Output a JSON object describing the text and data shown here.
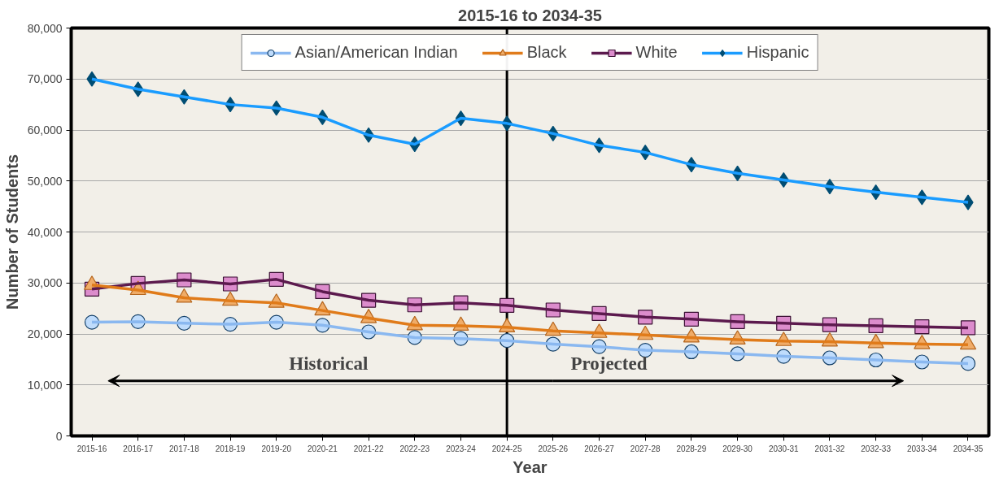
{
  "chart_data": {
    "type": "line",
    "title": "2015-16 to 2034-35",
    "xlabel": "Year",
    "ylabel": "Number of Students",
    "categories": [
      "2015-16",
      "2016-17",
      "2017-18",
      "2018-19",
      "2019-20",
      "2020-21",
      "2021-22",
      "2022-23",
      "2023-24",
      "2024-25",
      "2025-26",
      "2026-27",
      "2027-28",
      "2028-29",
      "2029-30",
      "2030-31",
      "2031-32",
      "2032-33",
      "2033-34",
      "2034-35"
    ],
    "series": [
      {
        "name": "Asian/American Indian",
        "color": "#8ab8f0",
        "marker": "circle",
        "values": [
          22300,
          22400,
          22100,
          21900,
          22300,
          21700,
          20400,
          19300,
          19100,
          18700,
          18000,
          17500,
          16800,
          16500,
          16100,
          15600,
          15300,
          14900,
          14500,
          14200
        ]
      },
      {
        "name": "Black",
        "color": "#e07b1a",
        "marker": "triangle",
        "values": [
          29600,
          28600,
          27100,
          26500,
          26100,
          24600,
          23100,
          21700,
          21600,
          21300,
          20600,
          20200,
          19800,
          19300,
          18900,
          18600,
          18500,
          18200,
          18000,
          17900
        ]
      },
      {
        "name": "White",
        "color": "#5c1a4e",
        "marker": "square",
        "values": [
          28800,
          29900,
          30600,
          29800,
          30700,
          28300,
          26600,
          25700,
          26100,
          25600,
          24700,
          24000,
          23300,
          22900,
          22400,
          22100,
          21800,
          21600,
          21400,
          21200
        ]
      },
      {
        "name": "Hispanic",
        "color": "#1a9cff",
        "marker": "diamond",
        "values": [
          70000,
          68000,
          66500,
          65000,
          64300,
          62500,
          59000,
          57200,
          62300,
          61300,
          59300,
          57000,
          55600,
          53200,
          51500,
          50200,
          48900,
          47800,
          46800,
          45800
        ]
      }
    ],
    "ylim": [
      0,
      80000
    ],
    "yticks": [
      {
        "value": 0,
        "label": "0"
      },
      {
        "value": 10000,
        "label": "10,000"
      },
      {
        "value": 20000,
        "label": "20,000"
      },
      {
        "value": 30000,
        "label": "30,000"
      },
      {
        "value": 40000,
        "label": "40,000"
      },
      {
        "value": 50000,
        "label": "50,000"
      },
      {
        "value": 60000,
        "label": "60,000"
      },
      {
        "value": 70000,
        "label": "70,000"
      },
      {
        "value": 80000,
        "label": "80,000"
      }
    ],
    "grid": "y",
    "legend": "top",
    "ref_lines": [
      {
        "axis": "x",
        "value": "2024-25",
        "color": "#000000"
      }
    ],
    "annotations": [
      "Historical",
      "Projected"
    ]
  }
}
